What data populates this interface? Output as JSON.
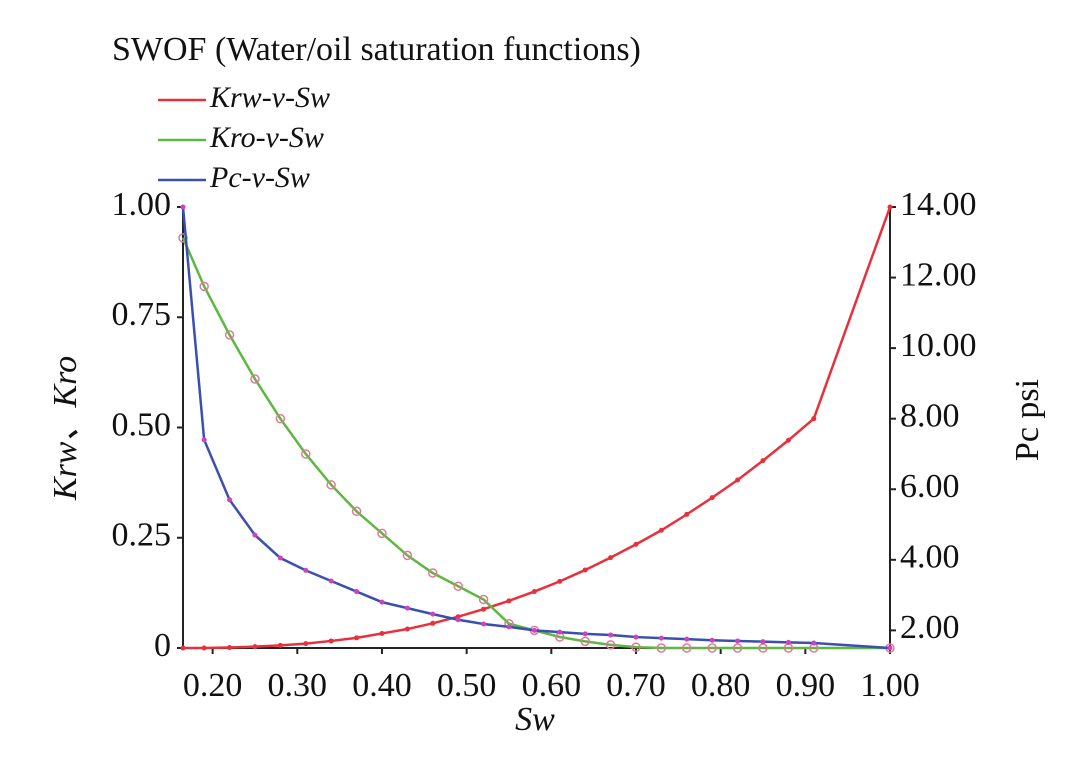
{
  "chart_data": {
    "type": "line",
    "title": "SWOF (Water/oil saturation functions)",
    "x_label": "Sw",
    "y_label": "Krw、Kro",
    "y2_label": "Pc psi",
    "x": [
      0.165,
      0.19,
      0.22,
      0.25,
      0.28,
      0.31,
      0.34,
      0.37,
      0.4,
      0.43,
      0.46,
      0.49,
      0.52,
      0.55,
      0.58,
      0.61,
      0.64,
      0.67,
      0.7,
      0.73,
      0.76,
      0.79,
      0.82,
      0.85,
      0.88,
      0.91,
      1.0
    ],
    "series": [
      {
        "name": "Krw-v-Sw",
        "color": "#e8303c",
        "marker_color": "#e8303c",
        "values": [
          0,
          0,
          0.001,
          0.003,
          0.006,
          0.01,
          0.016,
          0.023,
          0.033,
          0.043,
          0.056,
          0.071,
          0.088,
          0.107,
          0.128,
          0.151,
          0.177,
          0.205,
          0.235,
          0.267,
          0.303,
          0.341,
          0.381,
          0.425,
          0.471,
          0.52,
          1.0
        ]
      },
      {
        "name": "Kro-v-Sw",
        "color": "#5cb840",
        "marker_color": "#e07a9a",
        "values": [
          0.93,
          0.82,
          0.71,
          0.61,
          0.52,
          0.44,
          0.37,
          0.31,
          0.26,
          0.21,
          0.17,
          0.14,
          0.11,
          0.055,
          0.04,
          0.025,
          0.015,
          0.007,
          0.002,
          0,
          0,
          0,
          0,
          0,
          0,
          0,
          0
        ]
      },
      {
        "name": "Pc-v-Sw",
        "color": "#3a4fb0",
        "marker_color": "#d040c0",
        "axis": "y2",
        "values": [
          14,
          7.4,
          5.7,
          4.7,
          4.05,
          3.7,
          3.4,
          3.1,
          2.8,
          2.63,
          2.46,
          2.3,
          2.18,
          2.1,
          2.0,
          1.95,
          1.9,
          1.87,
          1.81,
          1.78,
          1.75,
          1.72,
          1.7,
          1.68,
          1.66,
          1.64,
          1.5
        ]
      }
    ],
    "xlim": [
      0.165,
      1.0
    ],
    "xticks": [
      {
        "value": 0.2,
        "label": "0.20"
      },
      {
        "value": 0.3,
        "label": "0.30"
      },
      {
        "value": 0.4,
        "label": "0.40"
      },
      {
        "value": 0.5,
        "label": "0.50"
      },
      {
        "value": 0.6,
        "label": "0.60"
      },
      {
        "value": 0.7,
        "label": "0.70"
      },
      {
        "value": 0.8,
        "label": "0.80"
      },
      {
        "value": 0.9,
        "label": "0.90"
      },
      {
        "value": 1.0,
        "label": "1.00"
      }
    ],
    "ylim": [
      0,
      1.0
    ],
    "yticks": [
      0,
      {
        "value": 0.25,
        "label": "0.25"
      },
      {
        "value": 0.5,
        "label": "0.50"
      },
      {
        "value": 0.75,
        "label": "0.75"
      },
      {
        "value": 1.0,
        "label": "1.00"
      }
    ],
    "y2lim": [
      1.5,
      14
    ],
    "y2ticks": [
      {
        "value": 2,
        "label": "2.00"
      },
      {
        "value": 4,
        "label": "4.00"
      },
      {
        "value": 6,
        "label": "6.00"
      },
      {
        "value": 8,
        "label": "8.00"
      },
      {
        "value": 10,
        "label": "10.00"
      },
      {
        "value": 12,
        "label": "12.00"
      },
      {
        "value": 14,
        "label": "14.00"
      }
    ],
    "legend": "top-left"
  }
}
